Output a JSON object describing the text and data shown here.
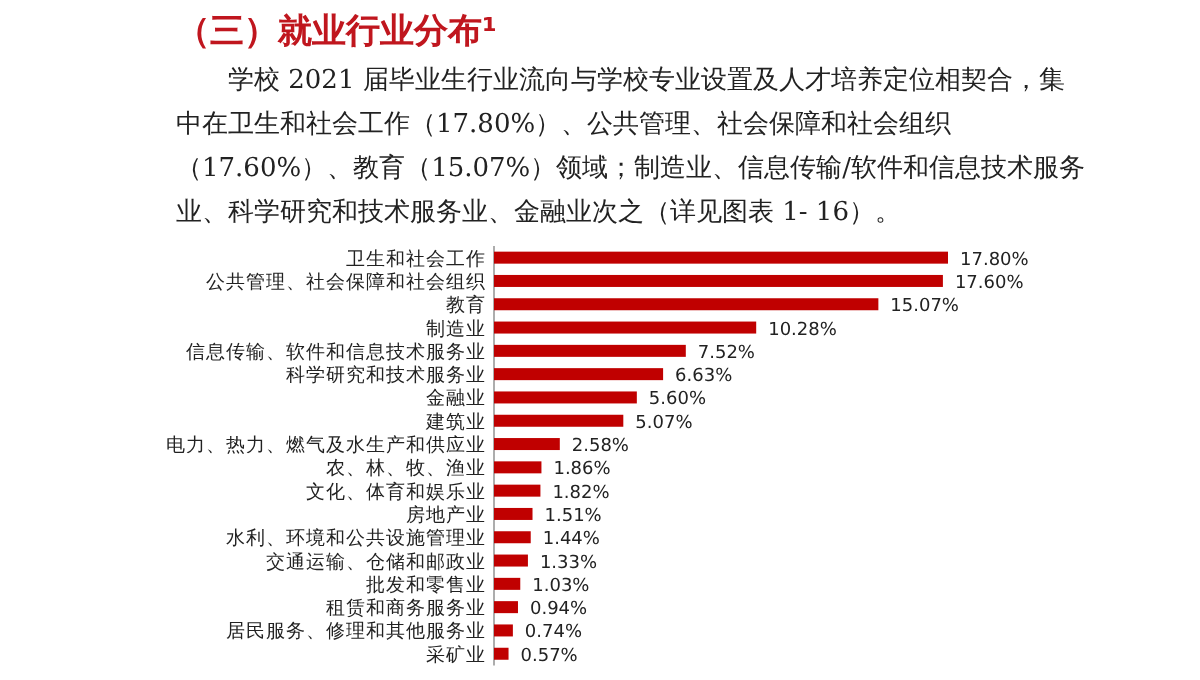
{
  "chart_data": {
    "type": "bar",
    "orientation": "horizontal",
    "title": "（三）就业行业分布¹",
    "annotations": [
      "学校 2021 届毕业生行业流向与学校专业设置及人才培养定位相契合，集中在卫生和社会工作（17.80%）、公共管理、社会保障和社会组织（17.60%）、教育（15.07%）领域；制造业、信息传输/软件和信息技术服务业、科学研究和技术服务业、金融业次之（详见图表 1- 16）。"
    ],
    "categories": [
      "卫生和社会工作",
      "公共管理、社会保障和社会组织",
      "教育",
      "制造业",
      "信息传输、软件和信息技术服务业",
      "科学研究和技术服务业",
      "金融业",
      "建筑业",
      "电力、热力、燃气及水生产和供应业",
      "农、林、牧、渔业",
      "文化、体育和娱乐业",
      "房地产业",
      "水利、环境和公共设施管理业",
      "交通运输、仓储和邮政业",
      "批发和零售业",
      "租赁和商务服务业",
      "居民服务、修理和其他服务业",
      "采矿业"
    ],
    "values": [
      17.8,
      17.6,
      15.07,
      10.28,
      7.52,
      6.63,
      5.6,
      5.07,
      2.58,
      1.86,
      1.82,
      1.51,
      1.44,
      1.33,
      1.03,
      0.94,
      0.74,
      0.57
    ],
    "value_labels": [
      "17.80%",
      "17.60%",
      "15.07%",
      "10.28%",
      "7.52%",
      "6.63%",
      "5.60%",
      "5.07%",
      "2.58%",
      "1.86%",
      "1.82%",
      "1.51%",
      "1.44%",
      "1.33%",
      "1.03%",
      "0.94%",
      "0.74%",
      "0.57%"
    ],
    "color": "#c00000"
  }
}
